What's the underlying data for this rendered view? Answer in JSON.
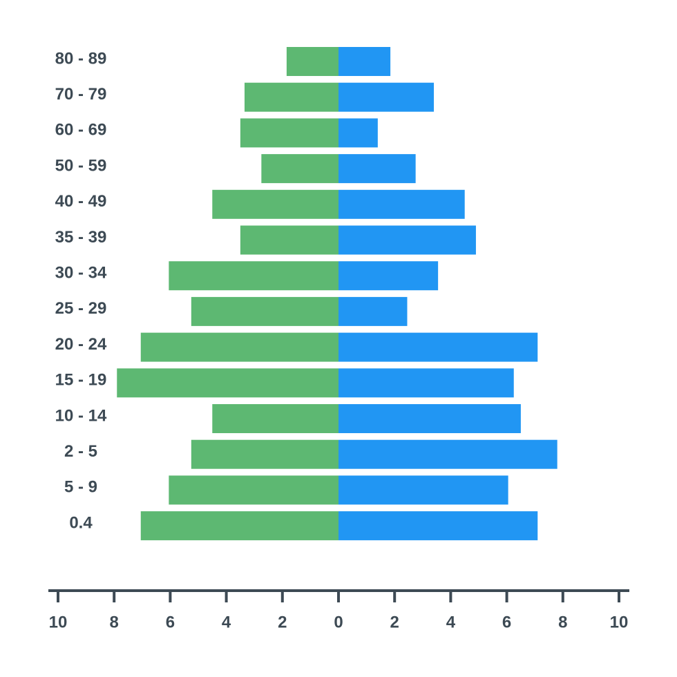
{
  "chart_data": {
    "type": "pyramid",
    "categories": [
      "80 - 89",
      "70 - 79",
      "60 - 69",
      "50 - 59",
      "40 - 49",
      "35 - 39",
      "30 - 34",
      "25 - 29",
      "20 - 24",
      "15 - 19",
      "10 - 14",
      "2 - 5",
      "5 - 9",
      "0.4"
    ],
    "series": [
      {
        "color": "#5db872",
        "values": [
          -1.85,
          -3.35,
          -3.5,
          -2.75,
          -4.5,
          -3.5,
          -6.05,
          -5.25,
          -7.05,
          -7.9,
          -4.5,
          -5.25,
          -6.05,
          -7.05
        ]
      },
      {
        "color": "#2196f3",
        "values": [
          1.85,
          3.4,
          1.4,
          2.75,
          4.5,
          4.9,
          3.55,
          2.45,
          7.1,
          6.25,
          6.5,
          7.8,
          6.05,
          7.1
        ]
      }
    ],
    "xlim": [
      -10,
      10
    ],
    "xticks": [
      {
        "value": -10,
        "label": "10"
      },
      {
        "value": -8,
        "label": "8"
      },
      {
        "value": -6,
        "label": "6"
      },
      {
        "value": -4,
        "label": "4"
      },
      {
        "value": -2,
        "label": "2"
      },
      0,
      2,
      4,
      6,
      8,
      10
    ]
  }
}
